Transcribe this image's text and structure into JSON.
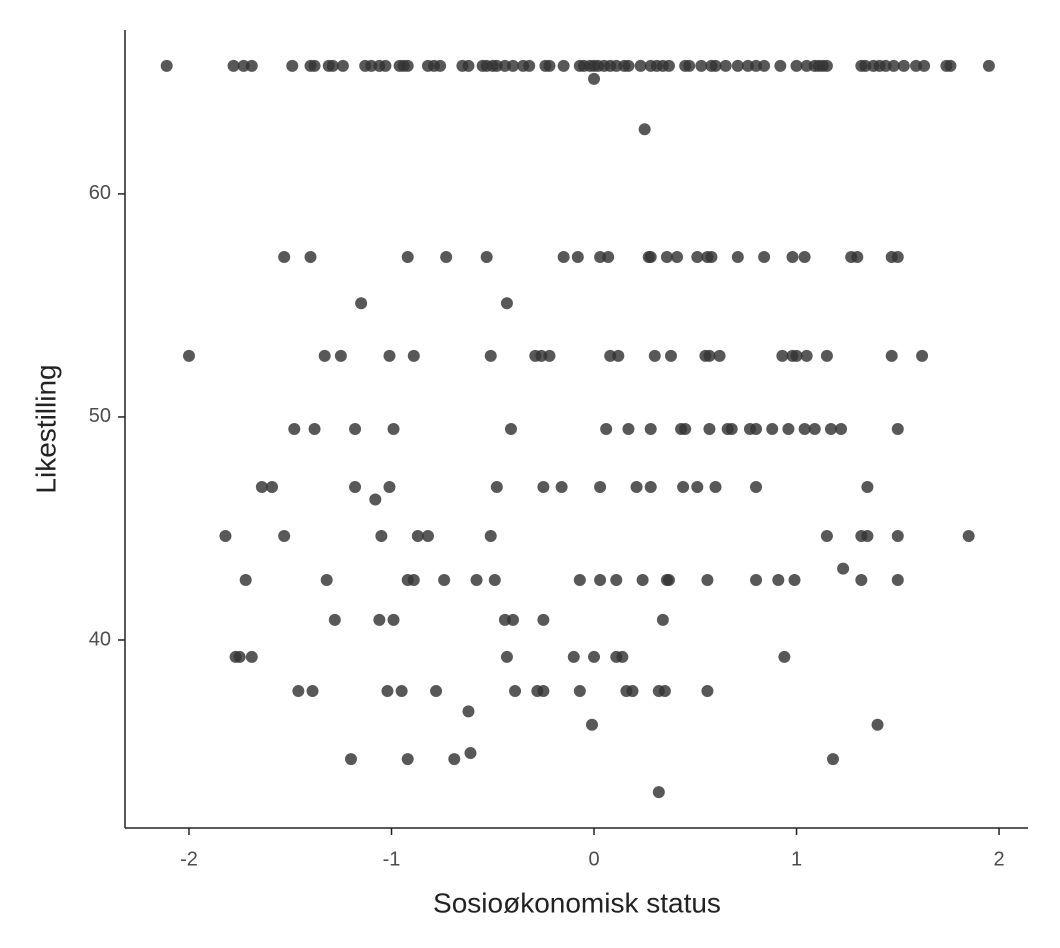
{
  "chart_data": {
    "type": "scatter",
    "x_label": "Sosioøkonomisk status",
    "y_label": "Likestilling",
    "color": "#333333",
    "xlim": [
      -2.316,
      2.143
    ],
    "ylim": [
      31.57,
      67.35
    ],
    "xticks": [
      -2,
      -1,
      0,
      1,
      2
    ],
    "yticks": [
      40,
      50,
      60
    ],
    "grid": false,
    "x": [
      -2.11,
      -1.78,
      -1.73,
      -1.69,
      -1.49,
      -1.4,
      -1.38,
      -1.31,
      -1.29,
      -1.24,
      -1.13,
      -1.1,
      -1.06,
      -1.03,
      -0.96,
      -0.94,
      -0.92,
      -0.82,
      -0.79,
      -0.76,
      -0.65,
      -0.62,
      -0.55,
      -0.53,
      -0.5,
      -0.48,
      -0.44,
      -0.4,
      -0.35,
      -0.32,
      -0.24,
      -0.22,
      -0.15,
      -0.07,
      -0.05,
      -0.02,
      0.0,
      0.02,
      0.05,
      0.08,
      0.11,
      0.15,
      0.17,
      0.23,
      0.28,
      0.31,
      0.34,
      0.37,
      0.45,
      0.47,
      0.53,
      0.58,
      0.6,
      0.65,
      0.71,
      0.76,
      0.8,
      0.84,
      0.92,
      1.0,
      1.05,
      1.09,
      1.11,
      1.13,
      1.15,
      1.32,
      1.34,
      1.38,
      1.41,
      1.44,
      1.48,
      1.53,
      1.59,
      1.63,
      1.74,
      1.76,
      1.95,
      0.0,
      0.25,
      -1.53,
      -1.4,
      -0.92,
      -0.73,
      -0.53,
      -0.15,
      -0.08,
      0.03,
      0.07,
      0.27,
      0.28,
      0.36,
      0.41,
      0.51,
      0.56,
      0.58,
      0.71,
      0.84,
      0.98,
      1.04,
      1.27,
      1.3,
      1.47,
      1.5,
      -1.15,
      -0.43,
      -2.0,
      -1.33,
      -1.25,
      -1.01,
      -0.89,
      -0.51,
      -0.29,
      -0.26,
      -0.22,
      0.08,
      0.12,
      0.3,
      0.38,
      0.55,
      0.57,
      0.62,
      0.93,
      0.98,
      1.0,
      1.05,
      1.15,
      1.47,
      1.62,
      -1.48,
      -1.38,
      -1.18,
      -0.99,
      -0.41,
      0.06,
      0.17,
      0.28,
      0.43,
      0.45,
      0.57,
      0.66,
      0.68,
      0.77,
      0.8,
      0.88,
      0.96,
      1.04,
      1.09,
      1.17,
      1.22,
      1.5,
      -1.64,
      -1.59,
      -1.18,
      -1.01,
      -0.48,
      -0.25,
      -0.16,
      0.03,
      0.21,
      0.28,
      0.44,
      0.51,
      0.6,
      0.8,
      1.35,
      -1.08,
      -1.82,
      -1.53,
      -1.05,
      -0.87,
      -0.82,
      -0.51,
      1.15,
      1.32,
      1.35,
      1.5,
      1.85,
      1.23,
      -1.72,
      -1.32,
      -0.92,
      -0.89,
      -0.74,
      -0.58,
      -0.49,
      -0.07,
      0.03,
      0.11,
      0.24,
      0.36,
      0.37,
      0.56,
      0.8,
      0.91,
      0.99,
      1.32,
      1.5,
      -1.28,
      -1.06,
      -0.99,
      -0.44,
      -0.4,
      -0.25,
      0.34,
      -1.77,
      -1.75,
      -1.69,
      -0.43,
      -0.1,
      0.0,
      0.11,
      0.14,
      0.94,
      -1.46,
      -1.39,
      -1.02,
      -0.95,
      -0.78,
      -0.39,
      -0.28,
      -0.25,
      -0.07,
      0.16,
      0.19,
      0.32,
      0.35,
      0.56,
      -0.62,
      -0.01,
      1.4,
      -1.2,
      -0.92,
      -0.69,
      1.18,
      -0.61,
      0.32
    ],
    "values": [
      65.74,
      65.74,
      65.74,
      65.74,
      65.74,
      65.74,
      65.74,
      65.74,
      65.74,
      65.74,
      65.74,
      65.74,
      65.74,
      65.74,
      65.74,
      65.74,
      65.74,
      65.74,
      65.74,
      65.74,
      65.74,
      65.74,
      65.74,
      65.74,
      65.74,
      65.74,
      65.74,
      65.74,
      65.74,
      65.74,
      65.74,
      65.74,
      65.74,
      65.74,
      65.74,
      65.74,
      65.74,
      65.74,
      65.74,
      65.74,
      65.74,
      65.74,
      65.74,
      65.74,
      65.74,
      65.74,
      65.74,
      65.74,
      65.74,
      65.74,
      65.74,
      65.74,
      65.74,
      65.74,
      65.74,
      65.74,
      65.74,
      65.74,
      65.74,
      65.74,
      65.74,
      65.74,
      65.74,
      65.74,
      65.74,
      65.74,
      65.74,
      65.74,
      65.74,
      65.74,
      65.74,
      65.74,
      65.74,
      65.74,
      65.74,
      65.74,
      65.74,
      65.16,
      62.9,
      57.17,
      57.17,
      57.17,
      57.17,
      57.17,
      57.17,
      57.17,
      57.17,
      57.17,
      57.17,
      57.17,
      57.17,
      57.17,
      57.17,
      57.17,
      57.17,
      57.17,
      57.17,
      57.17,
      57.17,
      57.17,
      57.17,
      57.17,
      57.17,
      55.1,
      55.1,
      52.74,
      52.74,
      52.74,
      52.74,
      52.74,
      52.74,
      52.74,
      52.74,
      52.74,
      52.74,
      52.74,
      52.74,
      52.74,
      52.74,
      52.74,
      52.74,
      52.74,
      52.74,
      52.74,
      52.74,
      52.74,
      52.74,
      52.74,
      49.46,
      49.46,
      49.46,
      49.46,
      49.46,
      49.46,
      49.46,
      49.46,
      49.46,
      49.46,
      49.46,
      49.46,
      49.46,
      49.46,
      49.46,
      49.46,
      49.46,
      49.46,
      49.46,
      49.46,
      49.46,
      49.46,
      46.86,
      46.86,
      46.86,
      46.86,
      46.86,
      46.86,
      46.86,
      46.86,
      46.86,
      46.86,
      46.86,
      46.86,
      46.86,
      46.86,
      46.86,
      46.3,
      44.66,
      44.66,
      44.66,
      44.66,
      44.66,
      44.66,
      44.66,
      44.66,
      44.66,
      44.66,
      44.66,
      43.2,
      42.69,
      42.69,
      42.69,
      42.69,
      42.69,
      42.69,
      42.69,
      42.69,
      42.69,
      42.69,
      42.69,
      42.69,
      42.69,
      42.69,
      42.69,
      42.69,
      42.69,
      42.69,
      42.69,
      40.9,
      40.9,
      40.9,
      40.9,
      40.9,
      40.9,
      40.9,
      39.24,
      39.24,
      39.24,
      39.24,
      39.24,
      39.24,
      39.24,
      39.24,
      39.24,
      37.71,
      37.71,
      37.71,
      37.71,
      37.71,
      37.71,
      37.71,
      37.71,
      37.71,
      37.71,
      37.71,
      37.71,
      37.71,
      37.71,
      36.8,
      36.2,
      36.2,
      34.66,
      34.66,
      34.66,
      34.66,
      34.93,
      33.18
    ]
  }
}
